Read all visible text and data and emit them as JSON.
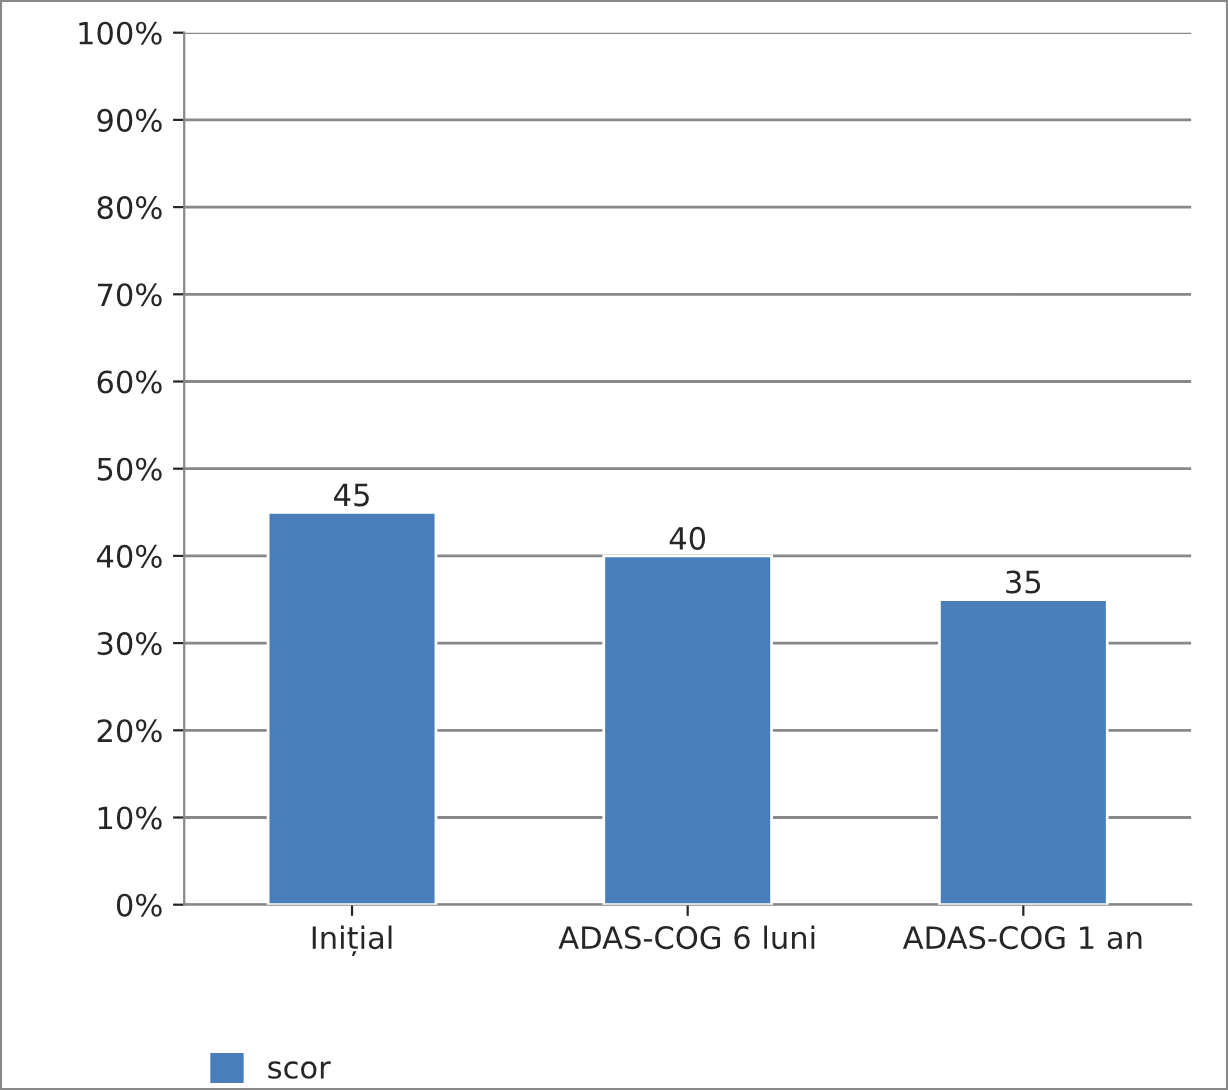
{
  "chart_data": {
    "type": "bar",
    "categories": [
      "Inițial",
      "ADAS-COG 6 luni",
      "ADAS-COG 1 an"
    ],
    "series": [
      {
        "name": "scor",
        "color": "#4a7ebb",
        "values": [
          45,
          40,
          35
        ]
      }
    ],
    "ylim": [
      0,
      100
    ],
    "yticks": [
      {
        "value": 0,
        "label": "0%"
      },
      {
        "value": 10,
        "label": "10%"
      },
      {
        "value": 20,
        "label": "20%"
      },
      {
        "value": 30,
        "label": "30%"
      },
      {
        "value": 40,
        "label": "40%"
      },
      {
        "value": 50,
        "label": "50%"
      },
      {
        "value": 60,
        "label": "60%"
      },
      {
        "value": 70,
        "label": "70%"
      },
      {
        "value": 80,
        "label": "80%"
      },
      {
        "value": 90,
        "label": "90%"
      },
      {
        "value": 100,
        "label": "100%"
      }
    ],
    "grid": "y",
    "legend": "bottom left",
    "data_labels": true
  }
}
